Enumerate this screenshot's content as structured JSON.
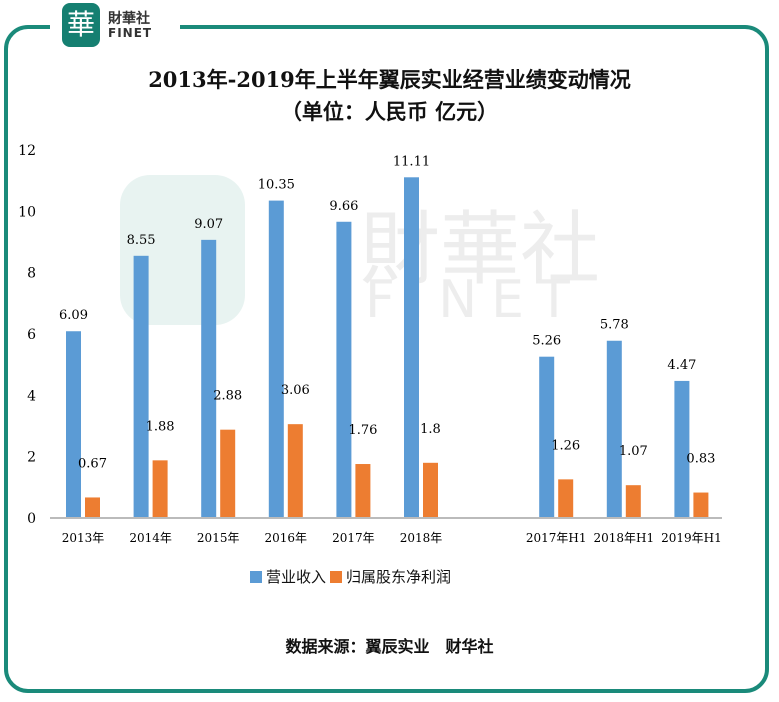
{
  "logo": {
    "cn": "財華社",
    "en": "FINET",
    "mark": "華"
  },
  "chart_data": {
    "type": "bar",
    "title": "2013年-2019年上半年翼辰实业经营业绩变动情况",
    "subtitle": "（单位：人民币 亿元）",
    "categories": [
      "2013年",
      "2014年",
      "2015年",
      "2016年",
      "2017年",
      "2018年",
      "",
      "2017年H1",
      "2018年H1",
      "2019年H1"
    ],
    "series": [
      {
        "name": "营业收入",
        "color": "#5b9bd5",
        "values": [
          6.09,
          8.55,
          9.07,
          10.35,
          9.66,
          11.11,
          null,
          5.26,
          5.78,
          4.47
        ]
      },
      {
        "name": "归属股东净利润",
        "color": "#ed7d31",
        "values": [
          0.67,
          1.88,
          2.88,
          3.06,
          1.76,
          1.8,
          null,
          1.26,
          1.07,
          0.83
        ]
      }
    ],
    "ylim": [
      0,
      12
    ],
    "yticks": [
      0,
      2,
      4,
      6,
      8,
      10,
      12
    ],
    "grid": false,
    "legend": "bottom"
  },
  "source": "数据来源：翼辰实业　财华社"
}
